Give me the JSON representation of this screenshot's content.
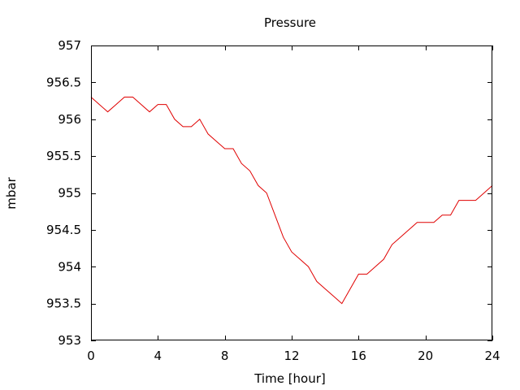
{
  "chart_data": {
    "type": "line",
    "title": "Pressure",
    "xlabel": "Time [hour]",
    "ylabel": "mbar",
    "xlim": [
      0,
      24
    ],
    "ylim": [
      953,
      957
    ],
    "xticks": [
      0,
      4,
      8,
      12,
      16,
      20,
      24
    ],
    "xtick_labels": [
      "0",
      "4",
      "8",
      "12",
      "16",
      "20",
      "24"
    ],
    "yticks": [
      953,
      953.5,
      954,
      954.5,
      955,
      955.5,
      956,
      956.5,
      957
    ],
    "ytick_labels": [
      "953",
      "953.5",
      "954",
      "954.5",
      "955",
      "955.5",
      "956",
      "956.5",
      "957"
    ],
    "grid": false,
    "line_color": "#e00000",
    "series": [
      {
        "x": [
          0,
          0.5,
          1,
          1.5,
          2,
          2.5,
          3,
          3.5,
          4,
          4.5,
          5,
          5.5,
          6,
          6.5,
          7,
          7.5,
          8,
          8.5,
          9,
          9.5,
          10,
          10.5,
          11,
          11.5,
          12,
          12.5,
          13,
          13.5,
          14,
          14.5,
          15,
          15.5,
          16,
          16.5,
          17,
          17.5,
          18,
          18.5,
          19,
          19.5,
          20,
          20.5,
          21,
          21.5,
          22,
          22.5,
          23,
          23.5,
          24
        ],
        "values": [
          956.3,
          956.2,
          956.1,
          956.2,
          956.3,
          956.3,
          956.2,
          956.1,
          956.2,
          956.2,
          956.0,
          955.9,
          955.9,
          956.0,
          955.8,
          955.7,
          955.6,
          955.6,
          955.4,
          955.3,
          955.1,
          955.0,
          954.7,
          954.4,
          954.2,
          954.1,
          954.0,
          953.8,
          953.7,
          953.6,
          953.5,
          953.7,
          953.9,
          953.9,
          954.0,
          954.1,
          954.3,
          954.4,
          954.5,
          954.6,
          954.6,
          954.6,
          954.7,
          954.7,
          954.9,
          954.9,
          954.9,
          955.0,
          955.1
        ]
      }
    ]
  }
}
